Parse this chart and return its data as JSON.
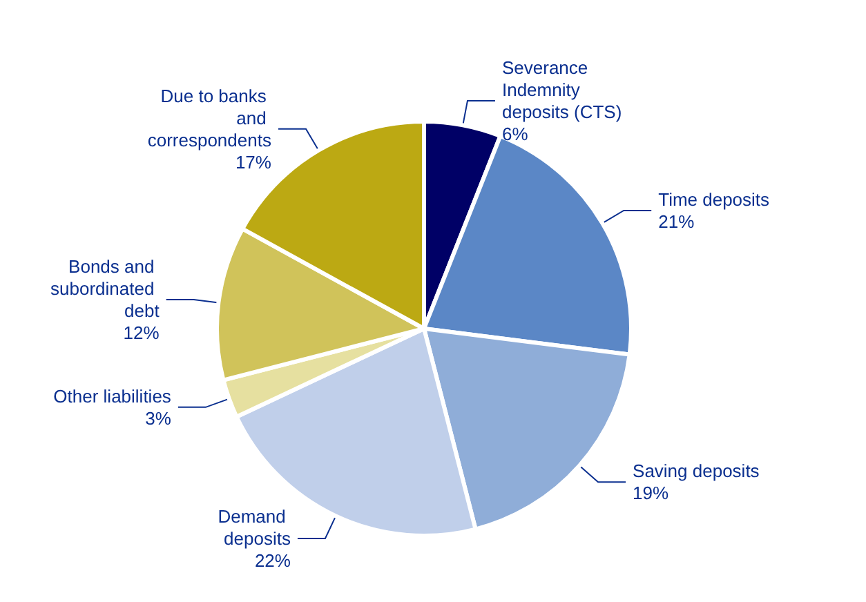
{
  "chart_data": {
    "type": "pie",
    "categories": [
      "Severance Indemnity deposits (CTS)",
      "Time deposits",
      "Saving deposits",
      "Demand deposits",
      "Other liabilities",
      "Bonds and subordinated debt",
      "Due to banks and correspondents"
    ],
    "values": [
      6,
      21,
      19,
      22,
      3,
      12,
      17
    ],
    "value_labels": [
      "6%",
      "21%",
      "19%",
      "22%",
      "3%",
      "12%",
      "17%"
    ],
    "colors": [
      "#000066",
      "#5b87c6",
      "#8fadd8",
      "#c0cfea",
      "#e6e0a0",
      "#d0c35a",
      "#bca913"
    ],
    "legend": false
  }
}
